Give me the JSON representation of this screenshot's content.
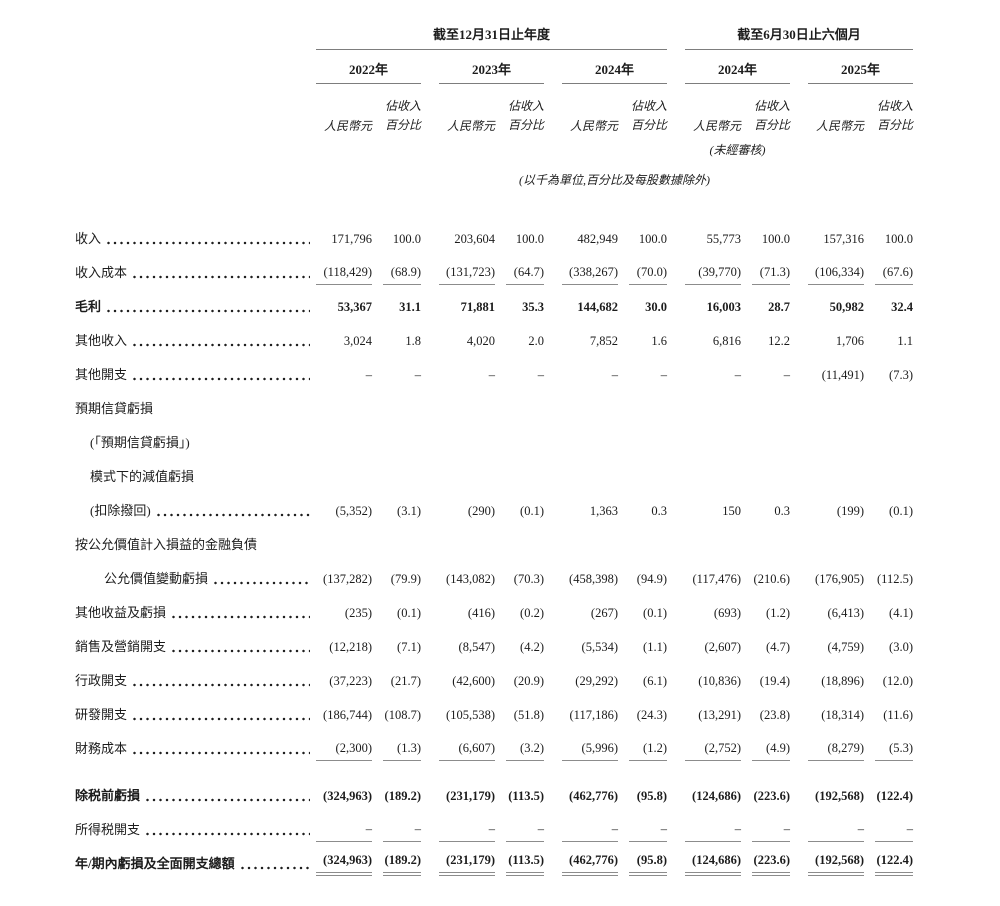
{
  "table": {
    "period_groups": [
      {
        "title": "截至12月31日止年度"
      },
      {
        "title": "截至6月30日止六個月"
      }
    ],
    "years": [
      "2022年",
      "2023年",
      "2024年",
      "2024年",
      "2025年"
    ],
    "subheaders": {
      "currency": "人民幣元",
      "pct_line1": "佔收入",
      "pct_line2": "百分比"
    },
    "unaudited_note": "(未經審核)",
    "unit_note": "(以千為單位,百分比及每股數據除外)",
    "rows": [
      {
        "label": "收入",
        "dots": true,
        "values": [
          "171,796",
          "100.0",
          "203,604",
          "100.0",
          "482,949",
          "100.0",
          "55,773",
          "100.0",
          "157,316",
          "100.0"
        ]
      },
      {
        "label": "收入成本",
        "dots": true,
        "underline": "single",
        "values": [
          "(118,429)",
          "(68.9)",
          "(131,723)",
          "(64.7)",
          "(338,267)",
          "(70.0)",
          "(39,770)",
          "(71.3)",
          "(106,334)",
          "(67.6)"
        ]
      },
      {
        "label": "毛利",
        "dots": true,
        "bold": true,
        "values": [
          "53,367",
          "31.1",
          "71,881",
          "35.3",
          "144,682",
          "30.0",
          "16,003",
          "28.7",
          "50,982",
          "32.4"
        ]
      },
      {
        "label": "其他收入",
        "dots": true,
        "values": [
          "3,024",
          "1.8",
          "4,020",
          "2.0",
          "7,852",
          "1.6",
          "6,816",
          "12.2",
          "1,706",
          "1.1"
        ]
      },
      {
        "label": "其他開支",
        "dots": true,
        "values": [
          "–",
          "–",
          "–",
          "–",
          "–",
          "–",
          "–",
          "–",
          "(11,491)",
          "(7.3)"
        ]
      },
      {
        "label": "預期信貸虧損",
        "dots": false,
        "values": null
      },
      {
        "label": "(「預期信貸虧損」)",
        "indent": 1,
        "dots": false,
        "values": null
      },
      {
        "label": "模式下的減值虧損",
        "indent": 1,
        "dots": false,
        "values": null
      },
      {
        "label": "(扣除撥回)",
        "indent": 1,
        "dots": true,
        "values": [
          "(5,352)",
          "(3.1)",
          "(290)",
          "(0.1)",
          "1,363",
          "0.3",
          "150",
          "0.3",
          "(199)",
          "(0.1)"
        ]
      },
      {
        "label": "按公允價值計入損益的金融負債",
        "dots": false,
        "values": null
      },
      {
        "label": "公允價值變動虧損",
        "indent": 2,
        "dots": true,
        "values": [
          "(137,282)",
          "(79.9)",
          "(143,082)",
          "(70.3)",
          "(458,398)",
          "(94.9)",
          "(117,476)",
          "(210.6)",
          "(176,905)",
          "(112.5)"
        ]
      },
      {
        "label": "其他收益及虧損",
        "dots": true,
        "values": [
          "(235)",
          "(0.1)",
          "(416)",
          "(0.2)",
          "(267)",
          "(0.1)",
          "(693)",
          "(1.2)",
          "(6,413)",
          "(4.1)"
        ]
      },
      {
        "label": "銷售及營銷開支",
        "dots": true,
        "values": [
          "(12,218)",
          "(7.1)",
          "(8,547)",
          "(4.2)",
          "(5,534)",
          "(1.1)",
          "(2,607)",
          "(4.7)",
          "(4,759)",
          "(3.0)"
        ]
      },
      {
        "label": "行政開支",
        "dots": true,
        "values": [
          "(37,223)",
          "(21.7)",
          "(42,600)",
          "(20.9)",
          "(29,292)",
          "(6.1)",
          "(10,836)",
          "(19.4)",
          "(18,896)",
          "(12.0)"
        ]
      },
      {
        "label": "研發開支",
        "dots": true,
        "values": [
          "(186,744)",
          "(108.7)",
          "(105,538)",
          "(51.8)",
          "(117,186)",
          "(24.3)",
          "(13,291)",
          "(23.8)",
          "(18,314)",
          "(11.6)"
        ]
      },
      {
        "label": "財務成本",
        "dots": true,
        "underline": "single",
        "values": [
          "(2,300)",
          "(1.3)",
          "(6,607)",
          "(3.2)",
          "(5,996)",
          "(1.2)",
          "(2,752)",
          "(4.9)",
          "(8,279)",
          "(5.3)"
        ]
      },
      {
        "label": "除税前虧損",
        "dots": true,
        "bold": true,
        "gap_top": true,
        "values": [
          "(324,963)",
          "(189.2)",
          "(231,179)",
          "(113.5)",
          "(462,776)",
          "(95.8)",
          "(124,686)",
          "(223.6)",
          "(192,568)",
          "(122.4)"
        ]
      },
      {
        "label": "所得税開支",
        "dots": true,
        "underline": "single",
        "values": [
          "–",
          "–",
          "–",
          "–",
          "–",
          "–",
          "–",
          "–",
          "–",
          "–"
        ]
      },
      {
        "label": "年/期內虧損及全面開支總額",
        "dots": true,
        "bold": true,
        "underline": "double",
        "values": [
          "(324,963)",
          "(189.2)",
          "(231,179)",
          "(113.5)",
          "(462,776)",
          "(95.8)",
          "(124,686)",
          "(223.6)",
          "(192,568)",
          "(122.4)"
        ]
      }
    ]
  }
}
